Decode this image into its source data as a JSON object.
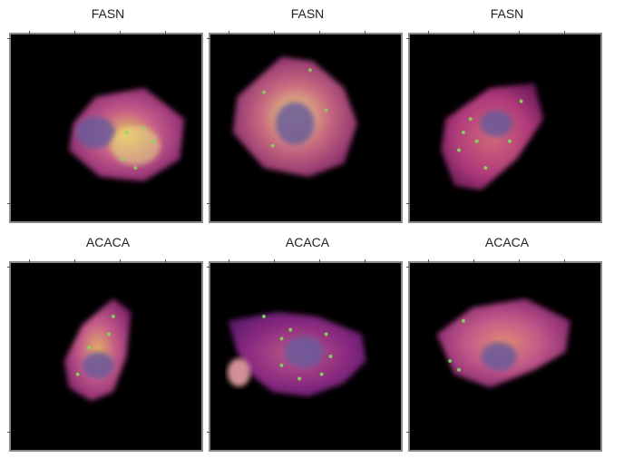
{
  "figure": {
    "panels": [
      {
        "title": "FASN",
        "image_label": "cell-image-fasn-1"
      },
      {
        "title": "FASN",
        "image_label": "cell-image-fasn-2"
      },
      {
        "title": "FASN",
        "image_label": "cell-image-fasn-3"
      },
      {
        "title": "ACACA",
        "image_label": "cell-image-acaca-1"
      },
      {
        "title": "ACACA",
        "image_label": "cell-image-acaca-2"
      },
      {
        "title": "ACACA",
        "image_label": "cell-image-acaca-3"
      }
    ],
    "colors": {
      "background": "#000000",
      "cytoplasm": "#a0306a",
      "nucleus": "#6a5a9a",
      "puncta": "#7ee05a"
    }
  }
}
